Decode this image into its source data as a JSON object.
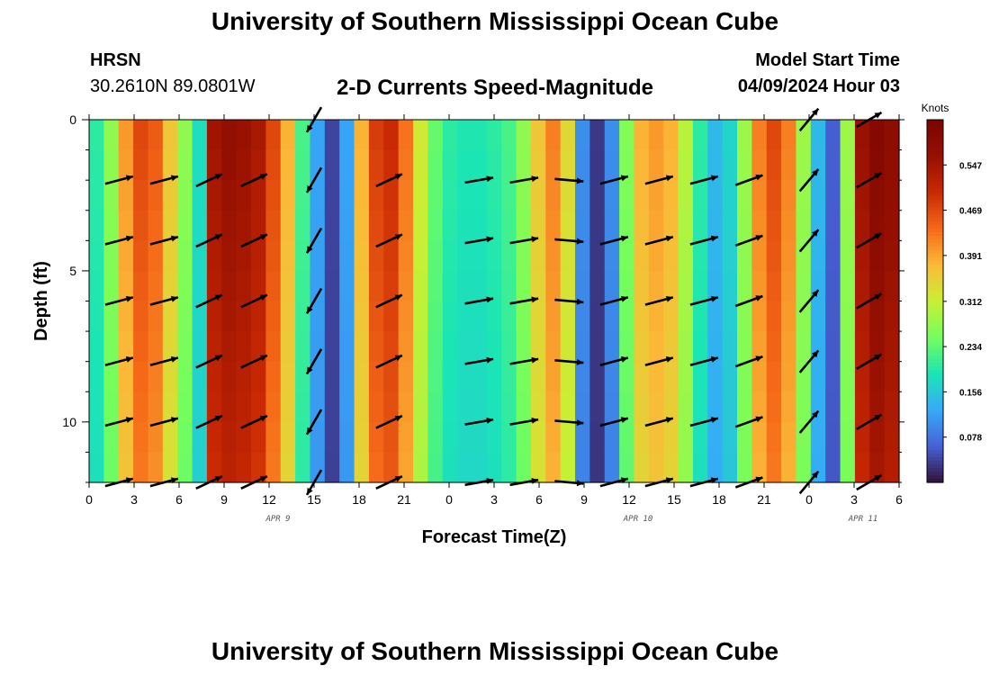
{
  "header": {
    "title": "University of Southern Mississippi Ocean Cube",
    "station_name": "HRSN",
    "station_coords": "30.2610N  89.0801W",
    "subtitle": "2-D Currents Speed-Magnitude",
    "model_start_label": "Model Start Time",
    "model_start_value": "04/09/2024 Hour 03"
  },
  "footer": {
    "title": "University of Southern Mississippi Ocean Cube"
  },
  "chart_data": {
    "type": "heatmap",
    "xlabel": "Forecast Time(Z)",
    "ylabel": "Depth (ft)",
    "x_tick_labels": [
      "0",
      "3",
      "6",
      "9",
      "12",
      "15",
      "18",
      "21",
      "0",
      "3",
      "6",
      "9",
      "12",
      "15",
      "18",
      "21",
      "0",
      "3",
      "6"
    ],
    "x_date_labels": [
      {
        "text": "APR 9",
        "at_hour": 12
      },
      {
        "text": "APR 10",
        "at_hour": 36
      },
      {
        "text": "APR 11",
        "at_hour": 51
      }
    ],
    "x_range_hours": [
      0,
      54
    ],
    "y_tick_labels": [
      "0",
      "5",
      "10"
    ],
    "y_range_ft": [
      0,
      12
    ],
    "colorbar": {
      "unit": "Knots",
      "ticks": [
        "0.547",
        "0.469",
        "0.391",
        "0.312",
        "0.234",
        "0.156",
        "0.078"
      ],
      "tick_values": [
        0.547,
        0.469,
        0.391,
        0.312,
        0.234,
        0.156,
        0.078
      ],
      "range": [
        0.0,
        0.625
      ]
    },
    "speed_by_hour": [
      0.2,
      0.27,
      0.4,
      0.47,
      0.45,
      0.36,
      0.27,
      0.18,
      0.55,
      0.57,
      0.56,
      0.54,
      0.47,
      0.38,
      0.22,
      0.12,
      0.04,
      0.12,
      0.38,
      0.48,
      0.5,
      0.43,
      0.32,
      0.24,
      0.2,
      0.19,
      0.19,
      0.2,
      0.22,
      0.27,
      0.36,
      0.42,
      0.34,
      0.1,
      0.03,
      0.1,
      0.26,
      0.38,
      0.4,
      0.38,
      0.3,
      0.2,
      0.14,
      0.17,
      0.28,
      0.42,
      0.47,
      0.42,
      0.28,
      0.14,
      0.06,
      0.28,
      0.56,
      0.6,
      0.58
    ],
    "vectors": [
      {
        "hour": 2,
        "dir": 75
      },
      {
        "hour": 5,
        "dir": 75
      },
      {
        "hour": 8,
        "dir": 65
      },
      {
        "hour": 11,
        "dir": 65
      },
      {
        "hour": 15,
        "dir": 210
      },
      {
        "hour": 20,
        "dir": 65
      },
      {
        "hour": 26,
        "dir": 80
      },
      {
        "hour": 29,
        "dir": 80
      },
      {
        "hour": 32,
        "dir": 95
      },
      {
        "hour": 35,
        "dir": 75
      },
      {
        "hour": 38,
        "dir": 75
      },
      {
        "hour": 41,
        "dir": 75
      },
      {
        "hour": 44,
        "dir": 70
      },
      {
        "hour": 48,
        "dir": 40
      },
      {
        "hour": 52,
        "dir": 60
      }
    ]
  }
}
